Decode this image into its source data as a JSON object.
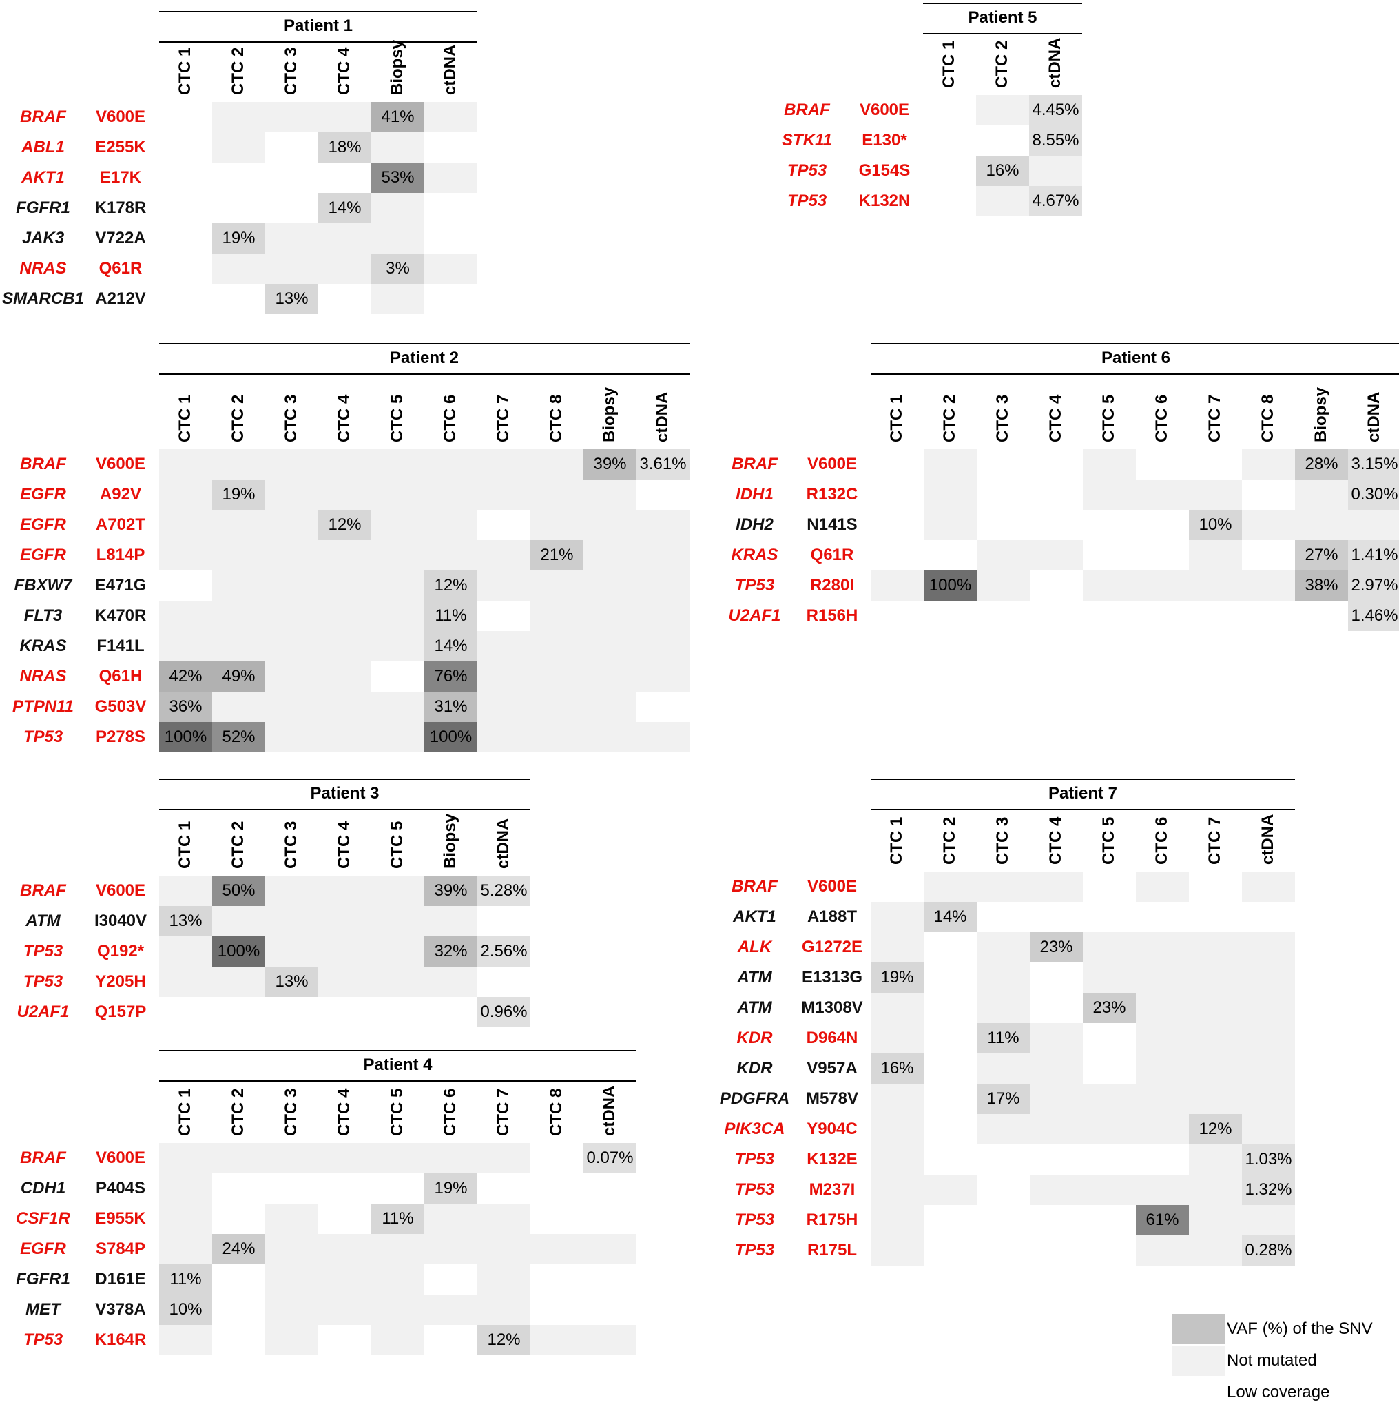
{
  "colors": {
    "low_coverage": "#ffffff",
    "not_mutated": "#f1f1f1",
    "accent_red": "#e8100a",
    "gene_black": "#111111"
  },
  "legend": [
    {
      "label": "VAF (%) of the SNV",
      "color": "#c4c4c4"
    },
    {
      "label": "Not mutated",
      "color": "#f1f1f1"
    },
    {
      "label": "Low coverage",
      "color": "#ffffff"
    }
  ],
  "chart_data": [
    {
      "type": "heatmap",
      "title": "Patient 1",
      "columns": [
        "CTC 1",
        "CTC 2",
        "CTC 3",
        "CTC 4",
        "Biopsy",
        "ctDNA"
      ],
      "rows": [
        {
          "gene": "BRAF",
          "mutation": "V600E",
          "red": true,
          "cells": [
            "lc",
            "nm",
            "nm",
            "nm",
            "41%",
            "nm"
          ]
        },
        {
          "gene": "ABL1",
          "mutation": "E255K",
          "red": true,
          "cells": [
            "lc",
            "nm",
            "lc",
            "18%",
            "nm",
            "lc"
          ]
        },
        {
          "gene": "AKT1",
          "mutation": "E17K",
          "red": true,
          "cells": [
            "lc",
            "lc",
            "lc",
            "lc",
            "53%",
            "nm"
          ]
        },
        {
          "gene": "FGFR1",
          "mutation": "K178R",
          "red": false,
          "cells": [
            "lc",
            "lc",
            "lc",
            "14%",
            "nm",
            "lc"
          ]
        },
        {
          "gene": "JAK3",
          "mutation": "V722A",
          "red": false,
          "cells": [
            "lc",
            "19%",
            "nm",
            "nm",
            "nm",
            "lc"
          ]
        },
        {
          "gene": "NRAS",
          "mutation": "Q61R",
          "red": true,
          "cells": [
            "lc",
            "nm",
            "nm",
            "nm",
            "3%",
            "nm"
          ]
        },
        {
          "gene": "SMARCB1",
          "mutation": "A212V",
          "red": false,
          "cells": [
            "lc",
            "lc",
            "13%",
            "lc",
            "nm",
            "lc"
          ]
        }
      ]
    },
    {
      "type": "heatmap",
      "title": "Patient 2",
      "columns": [
        "CTC 1",
        "CTC 2",
        "CTC 3",
        "CTC 4",
        "CTC 5",
        "CTC 6",
        "CTC 7",
        "CTC 8",
        "Biopsy",
        "ctDNA"
      ],
      "rows": [
        {
          "gene": "BRAF",
          "mutation": "V600E",
          "red": true,
          "cells": [
            "nm",
            "nm",
            "nm",
            "nm",
            "nm",
            "nm",
            "nm",
            "nm",
            "39%",
            "3.61%"
          ]
        },
        {
          "gene": "EGFR",
          "mutation": "A92V",
          "red": true,
          "cells": [
            "nm",
            "19%",
            "nm",
            "nm",
            "nm",
            "nm",
            "nm",
            "nm",
            "nm",
            "lc"
          ]
        },
        {
          "gene": "EGFR",
          "mutation": "A702T",
          "red": true,
          "cells": [
            "nm",
            "nm",
            "nm",
            "12%",
            "nm",
            "nm",
            "lc",
            "nm",
            "nm",
            "nm"
          ]
        },
        {
          "gene": "EGFR",
          "mutation": "L814P",
          "red": true,
          "cells": [
            "nm",
            "nm",
            "nm",
            "nm",
            "nm",
            "nm",
            "nm",
            "21%",
            "nm",
            "nm"
          ]
        },
        {
          "gene": "FBXW7",
          "mutation": "E471G",
          "red": false,
          "cells": [
            "lc",
            "nm",
            "nm",
            "nm",
            "nm",
            "12%",
            "nm",
            "nm",
            "nm",
            "nm"
          ]
        },
        {
          "gene": "FLT3",
          "mutation": "K470R",
          "red": false,
          "cells": [
            "nm",
            "nm",
            "nm",
            "nm",
            "nm",
            "11%",
            "lc",
            "nm",
            "nm",
            "nm"
          ]
        },
        {
          "gene": "KRAS",
          "mutation": "F141L",
          "red": false,
          "cells": [
            "nm",
            "nm",
            "nm",
            "nm",
            "nm",
            "14%",
            "nm",
            "nm",
            "nm",
            "nm"
          ]
        },
        {
          "gene": "NRAS",
          "mutation": "Q61H",
          "red": true,
          "cells": [
            "42%",
            "49%",
            "nm",
            "nm",
            "lc",
            "76%",
            "nm",
            "nm",
            "nm",
            "nm"
          ]
        },
        {
          "gene": "PTPN11",
          "mutation": "G503V",
          "red": true,
          "cells": [
            "36%",
            "nm",
            "nm",
            "nm",
            "nm",
            "31%",
            "nm",
            "nm",
            "nm",
            "lc"
          ]
        },
        {
          "gene": "TP53",
          "mutation": "P278S",
          "red": true,
          "cells": [
            "100%",
            "52%",
            "nm",
            "nm",
            "nm",
            "100%",
            "nm",
            "nm",
            "nm",
            "nm"
          ]
        }
      ]
    },
    {
      "type": "heatmap",
      "title": "Patient 3",
      "columns": [
        "CTC 1",
        "CTC 2",
        "CTC 3",
        "CTC 4",
        "CTC 5",
        "Biopsy",
        "ctDNA"
      ],
      "rows": [
        {
          "gene": "BRAF",
          "mutation": "V600E",
          "red": true,
          "cells": [
            "nm",
            "50%",
            "nm",
            "nm",
            "nm",
            "39%",
            "5.28%"
          ]
        },
        {
          "gene": "ATM",
          "mutation": "I3040V",
          "red": false,
          "cells": [
            "13%",
            "nm",
            "nm",
            "nm",
            "nm",
            "nm",
            "lc"
          ]
        },
        {
          "gene": "TP53",
          "mutation": "Q192*",
          "red": true,
          "cells": [
            "nm",
            "100%",
            "nm",
            "nm",
            "nm",
            "32%",
            "2.56%"
          ]
        },
        {
          "gene": "TP53",
          "mutation": "Y205H",
          "red": true,
          "cells": [
            "nm",
            "nm",
            "13%",
            "nm",
            "nm",
            "nm",
            "lc"
          ]
        },
        {
          "gene": "U2AF1",
          "mutation": "Q157P",
          "red": true,
          "cells": [
            "lc",
            "lc",
            "lc",
            "lc",
            "lc",
            "lc",
            "0.96%"
          ]
        }
      ]
    },
    {
      "type": "heatmap",
      "title": "Patient 4",
      "columns": [
        "CTC 1",
        "CTC 2",
        "CTC 3",
        "CTC 4",
        "CTC 5",
        "CTC 6",
        "CTC 7",
        "CTC 8",
        "ctDNA"
      ],
      "rows": [
        {
          "gene": "BRAF",
          "mutation": "V600E",
          "red": true,
          "cells": [
            "nm",
            "nm",
            "nm",
            "nm",
            "nm",
            "nm",
            "nm",
            "lc",
            "0.07%"
          ]
        },
        {
          "gene": "CDH1",
          "mutation": "P404S",
          "red": false,
          "cells": [
            "nm",
            "lc",
            "lc",
            "lc",
            "lc",
            "19%",
            "lc",
            "lc",
            "lc"
          ]
        },
        {
          "gene": "CSF1R",
          "mutation": "E955K",
          "red": true,
          "cells": [
            "nm",
            "lc",
            "nm",
            "lc",
            "11%",
            "nm",
            "nm",
            "lc",
            "lc"
          ]
        },
        {
          "gene": "EGFR",
          "mutation": "S784P",
          "red": true,
          "cells": [
            "nm",
            "24%",
            "nm",
            "nm",
            "nm",
            "nm",
            "nm",
            "nm",
            "nm"
          ]
        },
        {
          "gene": "FGFR1",
          "mutation": "D161E",
          "red": false,
          "cells": [
            "11%",
            "lc",
            "nm",
            "nm",
            "nm",
            "lc",
            "nm",
            "lc",
            "lc"
          ]
        },
        {
          "gene": "MET",
          "mutation": "V378A",
          "red": false,
          "cells": [
            "10%",
            "lc",
            "nm",
            "nm",
            "nm",
            "nm",
            "nm",
            "lc",
            "lc"
          ]
        },
        {
          "gene": "TP53",
          "mutation": "K164R",
          "red": true,
          "cells": [
            "nm",
            "lc",
            "nm",
            "lc",
            "nm",
            "lc",
            "12%",
            "nm",
            "nm"
          ]
        }
      ]
    },
    {
      "type": "heatmap",
      "title": "Patient 5",
      "columns": [
        "CTC 1",
        "CTC 2",
        "ctDNA"
      ],
      "rows": [
        {
          "gene": "BRAF",
          "mutation": "V600E",
          "red": true,
          "cells": [
            "lc",
            "nm",
            "4.45%"
          ]
        },
        {
          "gene": "STK11",
          "mutation": "E130*",
          "red": true,
          "cells": [
            "lc",
            "lc",
            "8.55%"
          ]
        },
        {
          "gene": "TP53",
          "mutation": "G154S",
          "red": true,
          "cells": [
            "lc",
            "16%",
            "nm"
          ]
        },
        {
          "gene": "TP53",
          "mutation": "K132N",
          "red": true,
          "cells": [
            "lc",
            "nm",
            "4.67%"
          ]
        }
      ]
    },
    {
      "type": "heatmap",
      "title": "Patient 6",
      "columns": [
        "CTC 1",
        "CTC 2",
        "CTC 3",
        "CTC 4",
        "CTC 5",
        "CTC 6",
        "CTC 7",
        "CTC 8",
        "Biopsy",
        "ctDNA"
      ],
      "rows": [
        {
          "gene": "BRAF",
          "mutation": "V600E",
          "red": true,
          "cells": [
            "lc",
            "nm",
            "lc",
            "lc",
            "nm",
            "lc",
            "lc",
            "nm",
            "28%",
            "3.15%"
          ]
        },
        {
          "gene": "IDH1",
          "mutation": "R132C",
          "red": true,
          "cells": [
            "lc",
            "nm",
            "lc",
            "lc",
            "nm",
            "nm",
            "nm",
            "lc",
            "nm",
            "0.30%"
          ]
        },
        {
          "gene": "IDH2",
          "mutation": "N141S",
          "red": false,
          "cells": [
            "lc",
            "nm",
            "lc",
            "lc",
            "lc",
            "lc",
            "10%",
            "nm",
            "nm",
            "nm"
          ]
        },
        {
          "gene": "KRAS",
          "mutation": "Q61R",
          "red": true,
          "cells": [
            "lc",
            "lc",
            "nm",
            "nm",
            "lc",
            "lc",
            "nm",
            "lc",
            "27%",
            "1.41%"
          ]
        },
        {
          "gene": "TP53",
          "mutation": "R280I",
          "red": true,
          "cells": [
            "nm",
            "100%",
            "nm",
            "lc",
            "nm",
            "nm",
            "nm",
            "nm",
            "38%",
            "2.97%"
          ]
        },
        {
          "gene": "U2AF1",
          "mutation": "R156H",
          "red": true,
          "cells": [
            "lc",
            "lc",
            "lc",
            "lc",
            "lc",
            "lc",
            "lc",
            "lc",
            "lc",
            "1.46%"
          ]
        }
      ]
    },
    {
      "type": "heatmap",
      "title": "Patient 7",
      "columns": [
        "CTC 1",
        "CTC 2",
        "CTC 3",
        "CTC 4",
        "CTC 5",
        "CTC 6",
        "CTC 7",
        "ctDNA"
      ],
      "rows": [
        {
          "gene": "BRAF",
          "mutation": "V600E",
          "red": true,
          "cells": [
            "lc",
            "nm",
            "nm",
            "nm",
            "lc",
            "nm",
            "lc",
            "nm"
          ]
        },
        {
          "gene": "AKT1",
          "mutation": "A188T",
          "red": false,
          "cells": [
            "nm",
            "14%",
            "lc",
            "lc",
            "lc",
            "lc",
            "lc",
            "lc"
          ]
        },
        {
          "gene": "ALK",
          "mutation": "G1272E",
          "red": true,
          "cells": [
            "nm",
            "lc",
            "nm",
            "23%",
            "nm",
            "nm",
            "nm",
            "nm"
          ]
        },
        {
          "gene": "ATM",
          "mutation": "E1313G",
          "red": false,
          "cells": [
            "19%",
            "lc",
            "nm",
            "lc",
            "nm",
            "nm",
            "nm",
            "nm"
          ]
        },
        {
          "gene": "ATM",
          "mutation": "M1308V",
          "red": false,
          "cells": [
            "nm",
            "lc",
            "nm",
            "lc",
            "23%",
            "nm",
            "nm",
            "nm"
          ]
        },
        {
          "gene": "KDR",
          "mutation": "D964N",
          "red": true,
          "cells": [
            "nm",
            "lc",
            "11%",
            "nm",
            "lc",
            "nm",
            "nm",
            "nm"
          ]
        },
        {
          "gene": "KDR",
          "mutation": "V957A",
          "red": false,
          "cells": [
            "16%",
            "lc",
            "nm",
            "nm",
            "lc",
            "nm",
            "nm",
            "nm"
          ]
        },
        {
          "gene": "PDGFRA",
          "mutation": "M578V",
          "red": false,
          "cells": [
            "nm",
            "lc",
            "17%",
            "nm",
            "nm",
            "nm",
            "nm",
            "nm"
          ]
        },
        {
          "gene": "PIK3CA",
          "mutation": "Y904C",
          "red": true,
          "cells": [
            "nm",
            "lc",
            "nm",
            "nm",
            "nm",
            "nm",
            "12%",
            "nm"
          ]
        },
        {
          "gene": "TP53",
          "mutation": "K132E",
          "red": true,
          "cells": [
            "nm",
            "lc",
            "lc",
            "lc",
            "lc",
            "lc",
            "nm",
            "1.03%"
          ]
        },
        {
          "gene": "TP53",
          "mutation": "M237I",
          "red": true,
          "cells": [
            "nm",
            "nm",
            "lc",
            "nm",
            "nm",
            "nm",
            "nm",
            "1.32%"
          ]
        },
        {
          "gene": "TP53",
          "mutation": "R175H",
          "red": true,
          "cells": [
            "nm",
            "lc",
            "lc",
            "lc",
            "lc",
            "61%",
            "nm",
            "nm"
          ]
        },
        {
          "gene": "TP53",
          "mutation": "R175L",
          "red": true,
          "cells": [
            "nm",
            "lc",
            "lc",
            "lc",
            "lc",
            "nm",
            "nm",
            "0.28%"
          ]
        }
      ]
    }
  ]
}
